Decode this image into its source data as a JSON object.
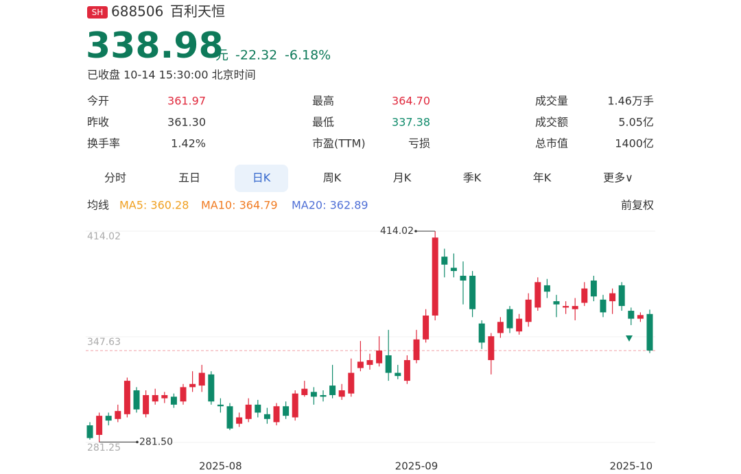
{
  "header": {
    "market": "SH",
    "code": "688506",
    "name": "百利天恒",
    "price": "338.98",
    "unit": "元",
    "change": "-22.32",
    "change_pct": "-6.18%",
    "status": "已收盘 10-14 15:30:00 北京时间"
  },
  "stats": [
    [
      {
        "label": "今开",
        "value": "361.97",
        "color": "#e0283c"
      },
      {
        "label": "最高",
        "value": "364.70",
        "color": "#e0283c"
      },
      {
        "label": "成交量",
        "value": "1.46万手"
      }
    ],
    [
      {
        "label": "昨收",
        "value": "361.30"
      },
      {
        "label": "最低",
        "value": "337.38",
        "color": "#0e8a6a"
      },
      {
        "label": "成交额",
        "value": "5.05亿"
      }
    ],
    [
      {
        "label": "换手率",
        "value": "1.42%"
      },
      {
        "label": "市盈(TTM)",
        "value": "亏损"
      },
      {
        "label": "总市值",
        "value": "1400亿"
      }
    ]
  ],
  "tabs": [
    "分时",
    "五日",
    "日K",
    "周K",
    "月K",
    "季K",
    "年K",
    "更多∨"
  ],
  "active_tab": 2,
  "ma_legend": {
    "label": "均线",
    "items": [
      {
        "name": "MA5: 360.28",
        "color": "#f0a020"
      },
      {
        "name": "MA10: 364.79",
        "color": "#f07b22"
      },
      {
        "name": "MA20: 362.89",
        "color": "#4f6fd6"
      }
    ]
  },
  "adjust": "前复权",
  "chart_data": {
    "type": "candlestick",
    "categories": [
      null,
      null,
      null,
      null,
      null,
      null,
      null,
      null,
      null,
      null,
      null,
      null,
      null,
      null,
      "2025-08",
      null,
      null,
      null,
      null,
      null,
      null,
      null,
      null,
      null,
      null,
      null,
      null,
      null,
      null,
      null,
      null,
      null,
      null,
      null,
      null,
      "2025-09",
      null,
      null,
      null,
      null,
      null,
      null,
      null,
      null,
      null,
      null,
      null,
      null,
      null,
      null,
      null,
      null,
      null,
      null,
      null,
      null,
      null,
      null,
      "2025-10",
      null,
      null
    ],
    "open": [
      292,
      286,
      298,
      296,
      299,
      314,
      299,
      307,
      309,
      310,
      307,
      316,
      317,
      324,
      305,
      304,
      293,
      296,
      305,
      299,
      294,
      304,
      297,
      311,
      313,
      311,
      317,
      310,
      312,
      328,
      330,
      331,
      336,
      325,
      320,
      333,
      346,
      361,
      398,
      391,
      386,
      386,
      356,
      333,
      350,
      365,
      351,
      357,
      366,
      380,
      370,
      366,
      365,
      369,
      383,
      371,
      370,
      380,
      364,
      359,
      361.97
    ],
    "high": [
      294,
      300,
      300,
      305,
      322,
      316,
      314,
      315,
      313,
      312,
      318,
      326,
      330,
      326,
      309,
      306,
      300,
      309,
      308,
      303,
      306,
      307,
      314,
      320,
      316,
      314,
      330,
      318,
      334,
      345,
      337,
      348,
      352,
      330,
      336,
      352,
      365,
      414.02,
      403,
      400,
      395,
      389,
      358,
      350,
      360,
      367,
      362,
      375,
      385,
      384,
      374,
      370,
      372,
      382,
      386,
      374,
      378,
      382,
      366,
      363,
      364.7
    ],
    "low": [
      283,
      281.5,
      292,
      294,
      297,
      300,
      297,
      305,
      306,
      303,
      305,
      313,
      313,
      305,
      300,
      289,
      291,
      294,
      297,
      293,
      292,
      296,
      295,
      310,
      305,
      307,
      309,
      308,
      310,
      326,
      327,
      329,
      320,
      321,
      318,
      331,
      344,
      358,
      385,
      385,
      368,
      360,
      340,
      324,
      347,
      350,
      349,
      354,
      364,
      372,
      360,
      362,
      358,
      367,
      370,
      360,
      362,
      364,
      355,
      357,
      337.38
    ],
    "close": [
      284,
      298,
      295,
      301,
      320,
      302,
      311,
      311,
      311,
      305,
      316,
      318,
      325,
      307,
      304,
      290,
      297,
      305,
      300,
      296,
      304,
      298,
      312,
      315,
      310,
      310,
      311,
      314,
      325,
      332,
      333,
      339,
      325,
      323,
      333,
      346,
      361,
      410,
      393,
      389,
      383,
      365,
      344,
      348,
      357,
      353,
      359,
      371,
      382,
      376,
      368,
      367,
      367,
      378,
      373,
      363,
      375,
      367,
      359,
      361.3,
      338.98
    ],
    "up_color": "#e0283c",
    "down_color": "#0e8a6a",
    "ylim": [
      281.25,
      414.02
    ],
    "yticks": [
      414.02,
      347.63,
      281.25
    ],
    "annotations": [
      414.02,
      {
        "value": 281.5,
        "label": "281.50"
      }
    ]
  }
}
